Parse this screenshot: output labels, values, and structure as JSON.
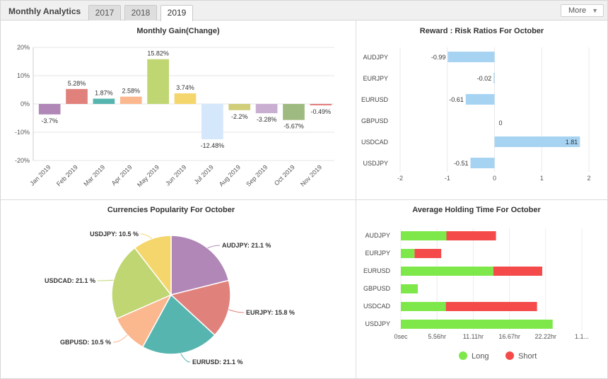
{
  "app": {
    "title": "Monthly Analytics",
    "more_label": "More"
  },
  "tabs": [
    {
      "label": "2017"
    },
    {
      "label": "2018"
    },
    {
      "label": "2019",
      "active": true
    }
  ],
  "colors": {
    "long": "#7ee84a",
    "short": "#f44a4a",
    "rr_bar": "#a7d3f3"
  },
  "chart_data": [
    {
      "type": "bar",
      "title": "Monthly Gain(Change)",
      "categories": [
        "Jan 2019",
        "Feb 2019",
        "Mar 2019",
        "Apr 2019",
        "May 2019",
        "Jun 2019",
        "Jul 2019",
        "Aug 2019",
        "Sep 2019",
        "Oct 2019",
        "Nov 2019"
      ],
      "values": [
        -3.7,
        5.28,
        1.87,
        2.58,
        15.82,
        3.74,
        -12.48,
        -2.2,
        -3.28,
        -5.67,
        -0.49
      ],
      "labels": [
        "-3.7%",
        "5.28%",
        "1.87%",
        "2.58%",
        "15.82%",
        "3.74%",
        "-12.48%",
        "-2.2%",
        "-3.28%",
        "-5.67%",
        "-0.49%"
      ],
      "colors": [
        "#b087b7",
        "#e1817c",
        "#57b5b0",
        "#fbb78e",
        "#bfd672",
        "#f5d66c",
        "#d5e7fb",
        "#d0ce78",
        "#c9aed2",
        "#9fba80",
        "#e37b7b"
      ],
      "yticks": [
        "20%",
        "10%",
        "0%",
        "-10%",
        "-20%"
      ],
      "ylim": [
        -20,
        20
      ],
      "grid": true
    },
    {
      "type": "bar",
      "orientation": "horizontal",
      "title": "Reward : Risk Ratios For October",
      "categories": [
        "AUDJPY",
        "EURJPY",
        "EURUSD",
        "GBPUSD",
        "USDCAD",
        "USDJPY"
      ],
      "values": [
        -0.99,
        -0.02,
        -0.61,
        0,
        1.81,
        -0.51
      ],
      "labels": [
        "-0.99",
        "-0.02",
        "-0.61",
        "0",
        "1.81",
        "-0.51"
      ],
      "xticks": [
        "-2",
        "-1",
        "0",
        "1",
        "2"
      ],
      "xlim": [
        -2,
        2
      ],
      "grid": true
    },
    {
      "type": "pie",
      "title": "Currencies Popularity For October",
      "slices": [
        {
          "name": "AUDJPY",
          "label": "AUDJPY: 21.1 %",
          "value": 21.1,
          "color": "#b087b7"
        },
        {
          "name": "EURJPY",
          "label": "EURJPY: 15.8 %",
          "value": 15.8,
          "color": "#e1817c"
        },
        {
          "name": "EURUSD",
          "label": "EURUSD: 21.1 %",
          "value": 21.1,
          "color": "#57b5b0"
        },
        {
          "name": "GBPUSD",
          "label": "GBPUSD: 10.5 %",
          "value": 10.5,
          "color": "#fbb78e"
        },
        {
          "name": "USDCAD",
          "label": "USDCAD: 21.1 %",
          "value": 21.1,
          "color": "#bfd672"
        },
        {
          "name": "USDJPY",
          "label": "USDJPY: 10.5 %",
          "value": 10.5,
          "color": "#f5d66c"
        }
      ]
    },
    {
      "type": "bar",
      "orientation": "horizontal",
      "stacked": true,
      "title": "Average Holding Time For October",
      "categories": [
        "AUDJPY",
        "EURJPY",
        "EURUSD",
        "GBPUSD",
        "USDCAD",
        "USDJPY"
      ],
      "x_unit": "hr",
      "series": [
        {
          "name": "Long",
          "values": [
            7.0,
            2.1,
            14.2,
            2.6,
            6.9,
            23.3
          ]
        },
        {
          "name": "Short",
          "values": [
            7.6,
            4.1,
            7.5,
            0,
            14.0,
            0
          ]
        }
      ],
      "xticks": [
        "0sec",
        "5.56hr",
        "11.11hr",
        "16.67hr",
        "22.22hr",
        "1.1..."
      ],
      "xlim": [
        0,
        27.78
      ],
      "legend": "bottom"
    }
  ]
}
